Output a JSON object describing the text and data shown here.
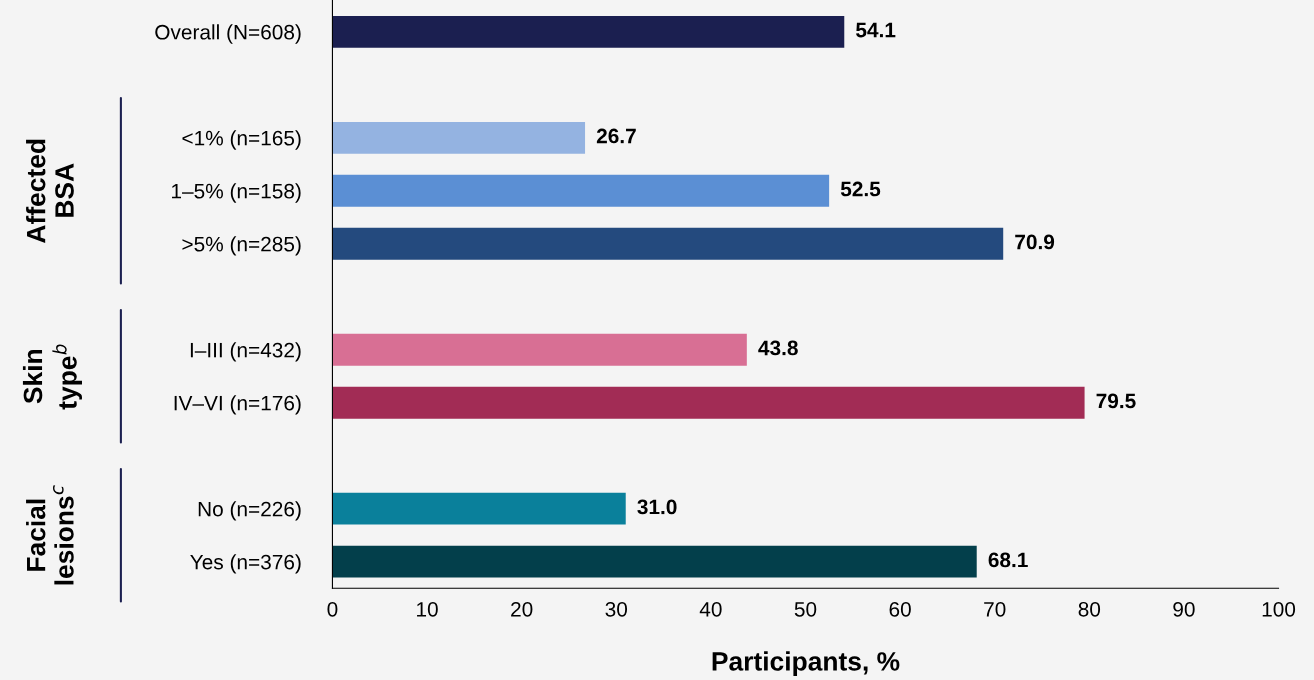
{
  "chart_data": {
    "type": "bar",
    "orientation": "horizontal",
    "xlabel": "Participants, %",
    "categories": [
      "Overall (N=608)",
      null,
      "<1% (n=165)",
      "1–5% (n=158)",
      ">5% (n=285)",
      null,
      "I–III (n=432)",
      "IV–VI (n=176)",
      null,
      "No (n=226)",
      "Yes (n=376)"
    ],
    "values": [
      54.1,
      null,
      26.7,
      52.5,
      70.9,
      null,
      43.8,
      79.5,
      null,
      31.0,
      68.1
    ],
    "colors": [
      "#1b1f50",
      "#000000",
      "#94b3e1",
      "#5b8fd4",
      "#244a7e",
      "#000000",
      "#d86f94",
      "#a22c55",
      "#000000",
      "#0a809b",
      "#033f4b"
    ],
    "xlim": [
      0,
      100
    ],
    "xticks": [
      0,
      10,
      20,
      30,
      40,
      50,
      60,
      70,
      80,
      90,
      100
    ],
    "value_labels": [
      "54.1",
      null,
      "26.7",
      "52.5",
      "70.9",
      null,
      "43.8",
      "79.5",
      null,
      "31.0",
      "68.1"
    ],
    "grid": false,
    "legend": false,
    "annotations": [
      "Affected\nBSA",
      "Skin\ntype$^{b}$",
      "Facial\nlesions$^{c}$"
    ]
  }
}
